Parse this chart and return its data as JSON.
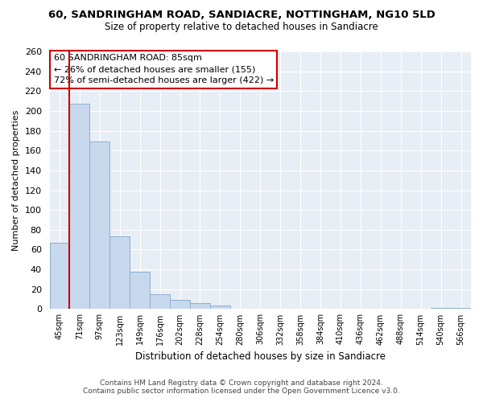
{
  "title": "60, SANDRINGHAM ROAD, SANDIACRE, NOTTINGHAM, NG10 5LD",
  "subtitle": "Size of property relative to detached houses in Sandiacre",
  "xlabel": "Distribution of detached houses by size in Sandiacre",
  "ylabel": "Number of detached properties",
  "bar_labels": [
    "45sqm",
    "71sqm",
    "97sqm",
    "123sqm",
    "149sqm",
    "176sqm",
    "202sqm",
    "228sqm",
    "254sqm",
    "280sqm",
    "306sqm",
    "332sqm",
    "358sqm",
    "384sqm",
    "410sqm",
    "436sqm",
    "462sqm",
    "488sqm",
    "514sqm",
    "540sqm",
    "566sqm"
  ],
  "bar_values": [
    67,
    207,
    169,
    73,
    38,
    15,
    9,
    6,
    4,
    0,
    0,
    0,
    0,
    0,
    0,
    0,
    0,
    0,
    0,
    1,
    1
  ],
  "bar_color": "#c8d8ed",
  "bar_edge_color": "#8ab0d0",
  "vline_x_index": 1,
  "vline_color": "#cc0000",
  "ylim": [
    0,
    260
  ],
  "yticks": [
    0,
    20,
    40,
    60,
    80,
    100,
    120,
    140,
    160,
    180,
    200,
    220,
    240,
    260
  ],
  "annotation_title": "60 SANDRINGHAM ROAD: 85sqm",
  "annotation_line1": "← 26% of detached houses are smaller (155)",
  "annotation_line2": "72% of semi-detached houses are larger (422) →",
  "footer_line1": "Contains HM Land Registry data © Crown copyright and database right 2024.",
  "footer_line2": "Contains public sector information licensed under the Open Government Licence v3.0.",
  "background_color": "#ffffff",
  "plot_bg_color": "#e8eef5",
  "grid_color": "#ffffff"
}
